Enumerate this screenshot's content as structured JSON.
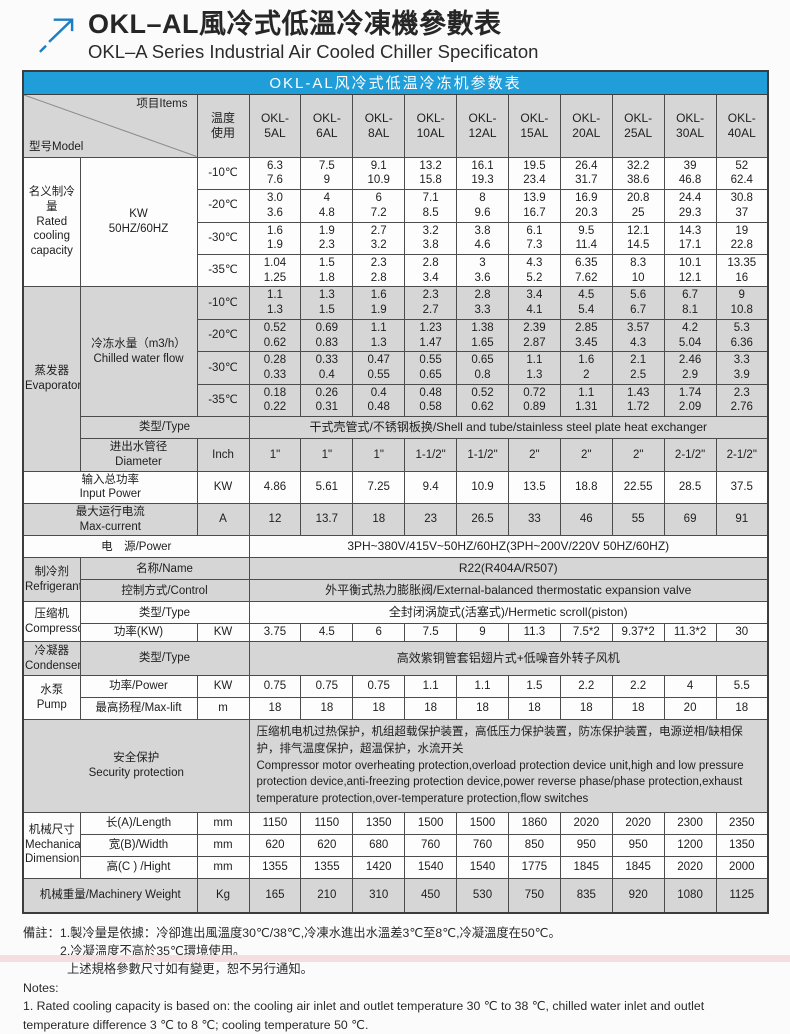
{
  "colors": {
    "accent_blue": "#1f9ed9",
    "cell_gray": "#d6d6d6",
    "border": "#4c4c4c",
    "logo_blue": "#1b7fc6",
    "bottom_strip_pink": "#f4dee2"
  },
  "header": {
    "title_zh": "OKL–AL風冷式低溫冷凍機參數表",
    "title_en": "OKL–A Series Industrial Air Cooled Chiller Specificaton"
  },
  "table": {
    "title": "OKL-AL风冷式低温冷冻机参数表",
    "corner_model": "型号Model",
    "corner_items": "项目Items",
    "temp_header": "温度\n使用",
    "models": [
      "OKL-\n5AL",
      "OKL-\n6AL",
      "OKL-\n8AL",
      "OKL-\n10AL",
      "OKL-\n12AL",
      "OKL-\n15AL",
      "OKL-\n20AL",
      "OKL-\n25AL",
      "OKL-\n30AL",
      "OKL-\n40AL"
    ],
    "rows": [
      {
        "cls": "w",
        "cells": [
          {
            "t": "名义制冷量\nRated\ncooling\ncapacity",
            "rs": 4,
            "cls": "lbl",
            "n": "section-label-rated-cooling"
          },
          {
            "t": "KW\n50HZ/60HZ",
            "rs": 4,
            "cls": "lbl",
            "n": "unit-label"
          },
          {
            "t": "-10℃",
            "cls": "lbl",
            "n": "temp-label"
          },
          {
            "t": "6.3\n7.6"
          },
          {
            "t": "7.5\n9"
          },
          {
            "t": "9.1\n10.9"
          },
          {
            "t": "13.2\n15.8"
          },
          {
            "t": "16.1\n19.3"
          },
          {
            "t": "19.5\n23.4"
          },
          {
            "t": "26.4\n31.7"
          },
          {
            "t": "32.2\n38.6"
          },
          {
            "t": "39\n46.8"
          },
          {
            "t": "52\n62.4"
          }
        ]
      },
      {
        "cls": "w",
        "cells": [
          {
            "t": "-20℃",
            "cls": "lbl",
            "n": "temp-label"
          },
          {
            "t": "3.0\n3.6"
          },
          {
            "t": "4\n4.8"
          },
          {
            "t": "6\n7.2"
          },
          {
            "t": "7.1\n8.5"
          },
          {
            "t": "8\n9.6"
          },
          {
            "t": "13.9\n16.7"
          },
          {
            "t": "16.9\n20.3"
          },
          {
            "t": "20.8\n25"
          },
          {
            "t": "24.4\n29.3"
          },
          {
            "t": "30.8\n37"
          }
        ]
      },
      {
        "cls": "w",
        "cells": [
          {
            "t": "-30℃",
            "cls": "lbl",
            "n": "temp-label"
          },
          {
            "t": "1.6\n1.9"
          },
          {
            "t": "1.9\n2.3"
          },
          {
            "t": "2.7\n3.2"
          },
          {
            "t": "3.2\n3.8"
          },
          {
            "t": "3.8\n4.6"
          },
          {
            "t": "6.1\n7.3"
          },
          {
            "t": "9.5\n11.4"
          },
          {
            "t": "12.1\n14.5"
          },
          {
            "t": "14.3\n17.1"
          },
          {
            "t": "19\n22.8"
          }
        ]
      },
      {
        "cls": "w",
        "cells": [
          {
            "t": "-35℃",
            "cls": "lbl",
            "n": "temp-label"
          },
          {
            "t": "1.04\n1.25"
          },
          {
            "t": "1.5\n1.8"
          },
          {
            "t": "2.3\n2.8"
          },
          {
            "t": "2.8\n3.4"
          },
          {
            "t": "3\n3.6"
          },
          {
            "t": "4.3\n5.2"
          },
          {
            "t": "6.35\n7.62"
          },
          {
            "t": "8.3\n10"
          },
          {
            "t": "10.1\n12.1"
          },
          {
            "t": "13.35\n16"
          }
        ]
      },
      {
        "cls": "g",
        "cells": [
          {
            "t": "蒸发器\nEvaporator",
            "rs": 6,
            "cls": "lbl",
            "n": "section-label-evaporator"
          },
          {
            "t": "冷冻水量（m3/h）\nChilled water flow",
            "rs": 4,
            "cls": "lbl",
            "n": "item-label"
          },
          {
            "t": "-10℃",
            "cls": "lbl",
            "n": "temp-label"
          },
          {
            "t": "1.1\n1.3"
          },
          {
            "t": "1.3\n1.5"
          },
          {
            "t": "1.6\n1.9"
          },
          {
            "t": "2.3\n2.7"
          },
          {
            "t": "2.8\n3.3"
          },
          {
            "t": "3.4\n4.1"
          },
          {
            "t": "4.5\n5.4"
          },
          {
            "t": "5.6\n6.7"
          },
          {
            "t": "6.7\n8.1"
          },
          {
            "t": "9\n10.8"
          }
        ]
      },
      {
        "cls": "g",
        "cells": [
          {
            "t": "-20℃",
            "cls": "lbl",
            "n": "temp-label"
          },
          {
            "t": "0.52\n0.62"
          },
          {
            "t": "0.69\n0.83"
          },
          {
            "t": "1.1\n1.3"
          },
          {
            "t": "1.23\n1.47"
          },
          {
            "t": "1.38\n1.65"
          },
          {
            "t": "2.39\n2.87"
          },
          {
            "t": "2.85\n3.45"
          },
          {
            "t": "3.57\n4.3"
          },
          {
            "t": "4.2\n5.04"
          },
          {
            "t": "5.3\n6.36"
          }
        ]
      },
      {
        "cls": "g",
        "cells": [
          {
            "t": "-30℃",
            "cls": "lbl",
            "n": "temp-label"
          },
          {
            "t": "0.28\n0.33"
          },
          {
            "t": "0.33\n0.4"
          },
          {
            "t": "0.47\n0.55"
          },
          {
            "t": "0.55\n0.65"
          },
          {
            "t": "0.65\n0.8"
          },
          {
            "t": "1.1\n1.3"
          },
          {
            "t": "1.6\n2"
          },
          {
            "t": "2.1\n2.5"
          },
          {
            "t": "2.46\n2.9"
          },
          {
            "t": "3.3\n3.9"
          }
        ]
      },
      {
        "cls": "g",
        "cells": [
          {
            "t": "-35℃",
            "cls": "lbl",
            "n": "temp-label"
          },
          {
            "t": "0.18\n0.22"
          },
          {
            "t": "0.26\n0.31"
          },
          {
            "t": "0.4\n0.48"
          },
          {
            "t": "0.48\n0.58"
          },
          {
            "t": "0.52\n0.62"
          },
          {
            "t": "0.72\n0.89"
          },
          {
            "t": "1.1\n1.31"
          },
          {
            "t": "1.43\n1.72"
          },
          {
            "t": "1.74\n2.09"
          },
          {
            "t": "2.3\n2.76"
          }
        ]
      },
      {
        "cls": "g one",
        "cells": [
          {
            "t": "类型/Type",
            "cs": 2,
            "cls": "lbl",
            "n": "item-label"
          },
          {
            "t": "干式壳管式/不锈钢板换/Shell and tube/stainless steel plate heat exchanger",
            "cs": 10,
            "cls": "wide",
            "n": "evaporator-type-value"
          }
        ]
      },
      {
        "cls": "g",
        "cells": [
          {
            "t": "进出水管径\nDiameter",
            "cls": "lbl",
            "n": "item-label"
          },
          {
            "t": "Inch",
            "cls": "lbl",
            "n": "unit-label"
          },
          {
            "t": "1\""
          },
          {
            "t": "1\""
          },
          {
            "t": "1\""
          },
          {
            "t": "1-1/2\""
          },
          {
            "t": "1-1/2\""
          },
          {
            "t": "2\""
          },
          {
            "t": "2\""
          },
          {
            "t": "2\""
          },
          {
            "t": "2-1/2\""
          },
          {
            "t": "2-1/2\""
          }
        ]
      },
      {
        "cls": "w",
        "cells": [
          {
            "t": "输入总功率\nInput Power",
            "cs": 2,
            "cls": "lbl",
            "n": "section-label-input-power"
          },
          {
            "t": "KW",
            "cls": "lbl",
            "n": "unit-label"
          },
          {
            "t": "4.86"
          },
          {
            "t": "5.61"
          },
          {
            "t": "7.25"
          },
          {
            "t": "9.4"
          },
          {
            "t": "10.9"
          },
          {
            "t": "13.5"
          },
          {
            "t": "18.8"
          },
          {
            "t": "22.55"
          },
          {
            "t": "28.5"
          },
          {
            "t": "37.5"
          }
        ]
      },
      {
        "cls": "g",
        "cells": [
          {
            "t": "最大运行电流\nMax-current",
            "cs": 2,
            "cls": "lbl",
            "n": "section-label-max-current"
          },
          {
            "t": "A",
            "cls": "lbl",
            "n": "unit-label"
          },
          {
            "t": "12"
          },
          {
            "t": "13.7"
          },
          {
            "t": "18"
          },
          {
            "t": "23"
          },
          {
            "t": "26.5"
          },
          {
            "t": "33"
          },
          {
            "t": "46"
          },
          {
            "t": "55"
          },
          {
            "t": "69"
          },
          {
            "t": "91"
          }
        ]
      },
      {
        "cls": "w one",
        "cells": [
          {
            "t": "电　源/Power",
            "cs": 3,
            "cls": "lbl",
            "n": "section-label-power"
          },
          {
            "t": "3PH~380V/415V~50HZ/60HZ(3PH~200V/220V  50HZ/60HZ)",
            "cs": 10,
            "cls": "wide",
            "n": "power-supply-value"
          }
        ]
      },
      {
        "cls": "g one",
        "cells": [
          {
            "t": "制冷剂\nRefrigerant",
            "rs": 2,
            "cls": "lbl",
            "n": "section-label-refrigerant"
          },
          {
            "t": "名称/Name",
            "cs": 2,
            "cls": "lbl",
            "n": "item-label"
          },
          {
            "t": "R22(R404A/R507)",
            "cs": 10,
            "cls": "wide",
            "n": "refrigerant-name-value"
          }
        ]
      },
      {
        "cls": "g one",
        "cells": [
          {
            "t": "控制方式/Control",
            "cs": 2,
            "cls": "lbl",
            "n": "item-label"
          },
          {
            "t": "外平衡式热力膨胀阀/External-balanced thermostatic expansion valve",
            "cs": 10,
            "cls": "wide",
            "n": "refrigerant-control-value"
          }
        ]
      },
      {
        "cls": "w one",
        "cells": [
          {
            "t": "压缩机\nCompressor",
            "rs": 2,
            "cls": "lbl",
            "n": "section-label-compressor"
          },
          {
            "t": "类型/Type",
            "cs": 2,
            "cls": "lbl",
            "n": "item-label"
          },
          {
            "t": "全封闭涡旋式(活塞式)/Hermetic scroll(piston)",
            "cs": 10,
            "cls": "wide",
            "n": "compressor-type-value"
          }
        ]
      },
      {
        "cls": "w",
        "cells": [
          {
            "t": "功率(KW)",
            "cls": "lbl",
            "n": "item-label"
          },
          {
            "t": "KW",
            "cls": "lbl",
            "n": "unit-label"
          },
          {
            "t": "3.75"
          },
          {
            "t": "4.5"
          },
          {
            "t": "6"
          },
          {
            "t": "7.5"
          },
          {
            "t": "9"
          },
          {
            "t": "11.3"
          },
          {
            "t": "7.5*2"
          },
          {
            "t": "9.37*2"
          },
          {
            "t": "11.3*2"
          },
          {
            "t": "30"
          }
        ]
      },
      {
        "cls": "g tall",
        "cells": [
          {
            "t": "冷凝器\nCondenser",
            "cls": "lbl",
            "n": "section-label-condenser"
          },
          {
            "t": "类型/Type",
            "cs": 2,
            "cls": "lbl",
            "n": "item-label"
          },
          {
            "t": "高效紫铜管套铝翅片式+低噪音外转子风机",
            "cs": 10,
            "cls": "wide",
            "n": "condenser-type-value"
          }
        ]
      },
      {
        "cls": "w one",
        "cells": [
          {
            "t": "水泵\nPump",
            "rs": 2,
            "cls": "lbl",
            "n": "section-label-pump"
          },
          {
            "t": "功率/Power",
            "cls": "lbl",
            "n": "item-label"
          },
          {
            "t": "KW",
            "cls": "lbl",
            "n": "unit-label"
          },
          {
            "t": "0.75"
          },
          {
            "t": "0.75"
          },
          {
            "t": "0.75"
          },
          {
            "t": "1.1"
          },
          {
            "t": "1.1"
          },
          {
            "t": "1.5"
          },
          {
            "t": "2.2"
          },
          {
            "t": "2.2"
          },
          {
            "t": "4"
          },
          {
            "t": "5.5"
          }
        ]
      },
      {
        "cls": "w one",
        "cells": [
          {
            "t": "最高扬程/Max-lift",
            "cls": "lbl",
            "n": "item-label"
          },
          {
            "t": "m",
            "cls": "lbl",
            "n": "unit-label"
          },
          {
            "t": "18"
          },
          {
            "t": "18"
          },
          {
            "t": "18"
          },
          {
            "t": "18"
          },
          {
            "t": "18"
          },
          {
            "t": "18"
          },
          {
            "t": "18"
          },
          {
            "t": "18"
          },
          {
            "t": "20"
          },
          {
            "t": "18"
          }
        ]
      },
      {
        "cls": "g",
        "cells": [
          {
            "t": "安全保护\nSecurity protection",
            "cs": 3,
            "cls": "lbl",
            "n": "section-label-security"
          },
          {
            "t": "压缩机电机过热保护，机组超载保护装置，高低压力保护装置，防冻保护装置，电源逆相/缺相保护，排气温度保护，超温保护，水流开关\nCompressor motor overheating protection,overload protection device unit,high and low pressure protection device,anti-freezing protection device,power reverse phase/phase protection,exhaust temperature protection,over-temperature protection,flow switches",
            "cs": 10,
            "cls": "left",
            "n": "security-protection-value"
          }
        ]
      },
      {
        "cls": "w one",
        "cells": [
          {
            "t": "机械尺寸\nMechanical\nDimensions",
            "rs": 3,
            "cls": "lbl",
            "n": "section-label-dimensions"
          },
          {
            "t": "长(A)/Length",
            "cls": "lbl",
            "n": "item-label"
          },
          {
            "t": "mm",
            "cls": "lbl",
            "n": "unit-label"
          },
          {
            "t": "1150"
          },
          {
            "t": "1150"
          },
          {
            "t": "1350"
          },
          {
            "t": "1500"
          },
          {
            "t": "1500"
          },
          {
            "t": "1860"
          },
          {
            "t": "2020"
          },
          {
            "t": "2020"
          },
          {
            "t": "2300"
          },
          {
            "t": "2350"
          }
        ]
      },
      {
        "cls": "w one",
        "cells": [
          {
            "t": "宽(B)/Width",
            "cls": "lbl",
            "n": "item-label"
          },
          {
            "t": "mm",
            "cls": "lbl",
            "n": "unit-label"
          },
          {
            "t": "620"
          },
          {
            "t": "620"
          },
          {
            "t": "680"
          },
          {
            "t": "760"
          },
          {
            "t": "760"
          },
          {
            "t": "850"
          },
          {
            "t": "950"
          },
          {
            "t": "950"
          },
          {
            "t": "1200"
          },
          {
            "t": "1350"
          }
        ]
      },
      {
        "cls": "w one",
        "cells": [
          {
            "t": "高(C ) /Hight",
            "cls": "lbl",
            "n": "item-label"
          },
          {
            "t": "mm",
            "cls": "lbl",
            "n": "unit-label"
          },
          {
            "t": "1355"
          },
          {
            "t": "1355"
          },
          {
            "t": "1420"
          },
          {
            "t": "1540"
          },
          {
            "t": "1540"
          },
          {
            "t": "1775"
          },
          {
            "t": "1845"
          },
          {
            "t": "1845"
          },
          {
            "t": "2020"
          },
          {
            "t": "2000"
          }
        ]
      },
      {
        "cls": "g tall",
        "cells": [
          {
            "t": "机械重量/Machinery Weight",
            "cs": 2,
            "cls": "lbl",
            "n": "section-label-weight"
          },
          {
            "t": "Kg",
            "cls": "lbl",
            "n": "unit-label"
          },
          {
            "t": "165"
          },
          {
            "t": "210"
          },
          {
            "t": "310"
          },
          {
            "t": "450"
          },
          {
            "t": "530"
          },
          {
            "t": "750"
          },
          {
            "t": "835"
          },
          {
            "t": "920"
          },
          {
            "t": "1080"
          },
          {
            "t": "1125"
          }
        ]
      }
    ]
  },
  "notes": [
    "備註：1.製冷量是依據：冷卻進出風溫度30℃/38℃,冷凍水進出水溫差3℃至8℃,冷凝溫度在50℃。",
    "2.冷凝溫度不高於35℃環境使用。",
    "上述規格參數尺寸如有變更，恕不另行通知。",
    "Notes:",
    "1. Rated cooling capacity is based on: the cooling air inlet and outlet temperature 30 ℃ to 38 ℃, chilled water inlet and outlet temperature difference 3 ℃ to 8 ℃; cooling temperature 50 ℃."
  ]
}
